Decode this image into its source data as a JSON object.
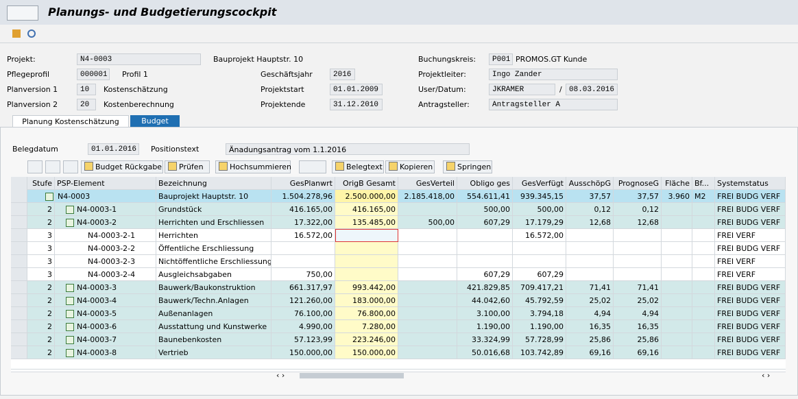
{
  "header": {
    "title": "Planungs- und Budgetierungscockpit"
  },
  "form": {
    "projekt": {
      "label": "Projekt:",
      "value": "N4-0003",
      "text": "Bauprojekt Hauptstr. 10"
    },
    "pflegeprofil": {
      "label": "Pflegeprofil",
      "value": "000001",
      "text": "Profil 1"
    },
    "planversion1": {
      "label": "Planversion 1",
      "value": "10",
      "text": "Kostenschätzung"
    },
    "planversion2": {
      "label": "Planversion 2",
      "value": "20",
      "text": "Kostenberechnung"
    },
    "geschaeftsjahr": {
      "label": "Geschäftsjahr",
      "value": "2016"
    },
    "projektstart": {
      "label": "Projektstart",
      "value": "01.01.2009"
    },
    "projektende": {
      "label": "Projektende",
      "value": "31.12.2010"
    },
    "buchungskreis": {
      "label": "Buchungskreis:",
      "value": "P001",
      "text": "PROMOS.GT Kunde"
    },
    "projektleiter": {
      "label": "Projektleiter:",
      "value": "Ingo Zander"
    },
    "user_datum": {
      "label": "User/Datum:",
      "value": "JKRAMER",
      "separator": "/",
      "date": "08.03.2016"
    },
    "antragsteller": {
      "label": "Antragsteller:",
      "value": "Antragsteller A"
    }
  },
  "tabs": [
    "Planung Kostenschätzung",
    "Budget"
  ],
  "beleg": {
    "datum_label": "Belegdatum",
    "datum": "01.01.2016",
    "text_label": "Positionstext",
    "text": "Änadungsantrag vom 1.1.2016"
  },
  "toolbar": [
    "Budget Rückgabe",
    "Prüfen",
    "Hochsummieren",
    "Belegtext",
    "Kopieren",
    "Springen"
  ],
  "table": {
    "columns": [
      "Stufe",
      "PSP-Element",
      "Bezeichnung",
      "GesPlanwrt",
      "OrigB Gesamt",
      "GesVerteil",
      "Obligo ges",
      "GesVerfügt",
      "AusschöpG",
      "PrognoseG",
      "Fläche",
      "Bf...",
      "Systemstatus"
    ],
    "rows": [
      [
        "1",
        "N4-0003",
        "Bauprojekt Hauptstr. 10",
        "1.504.278,96",
        "2.500.000,00",
        "2.185.418,00",
        "554.611,41",
        "939.345,15",
        "37,57",
        "37,57",
        "3.960",
        "M2",
        "FREI BUDG VERF"
      ],
      [
        "2",
        "N4-0003-1",
        "Grundstück",
        "416.165,00",
        "416.165,00",
        null,
        "500,00",
        "500,00",
        "0,12",
        "0,12",
        null,
        null,
        "FREI BUDG VERF"
      ],
      [
        "2",
        "N4-0003-2",
        "Herrichten und Erschliessen",
        "17.322,00",
        "135.485,00",
        "500,00",
        "607,29",
        "17.179,29",
        "12,68",
        "12,68",
        null,
        null,
        "FREI BUDG VERF"
      ],
      [
        "3",
        "N4-0003-2-1",
        "Herrichten",
        "16.572,00",
        null,
        null,
        null,
        "16.572,00",
        null,
        null,
        null,
        null,
        "FREI VERF"
      ],
      [
        "3",
        "N4-0003-2-2",
        "Öffentliche Erschliessung",
        null,
        null,
        null,
        null,
        null,
        null,
        null,
        null,
        null,
        "FREI BUDG VERF"
      ],
      [
        "3",
        "N4-0003-2-3",
        "Nichtöffentliche Erschliessung",
        null,
        null,
        null,
        null,
        null,
        null,
        null,
        null,
        null,
        "FREI VERF"
      ],
      [
        "3",
        "N4-0003-2-4",
        "Ausgleichsabgaben",
        "750,00",
        null,
        null,
        "607,29",
        "607,29",
        null,
        null,
        null,
        null,
        "FREI VERF"
      ],
      [
        "2",
        "N4-0003-3",
        "Bauwerk/Baukonstruktion",
        "661.317,97",
        "993.442,00",
        null,
        "421.829,85",
        "709.417,21",
        "71,41",
        "71,41",
        null,
        null,
        "FREI BUDG VERF"
      ],
      [
        "2",
        "N4-0003-4",
        "Bauwerk/Techn.Anlagen",
        "121.260,00",
        "183.000,00",
        null,
        "44.042,60",
        "45.792,59",
        "25,02",
        "25,02",
        null,
        null,
        "FREI BUDG VERF"
      ],
      [
        "2",
        "N4-0003-5",
        "Außenanlagen",
        "76.100,00",
        "76.800,00",
        null,
        "3.100,00",
        "3.794,18",
        "4,94",
        "4,94",
        null,
        null,
        "FREI BUDG VERF"
      ],
      [
        "2",
        "N4-0003-6",
        "Ausstattung und Kunstwerke",
        "4.990,00",
        "7.280,00",
        null,
        "1.190,00",
        "1.190,00",
        "16,35",
        "16,35",
        null,
        null,
        "FREI BUDG VERF"
      ],
      [
        "2",
        "N4-0003-7",
        "Baunebenkosten",
        "57.123,99",
        "223.246,00",
        null,
        "33.324,99",
        "57.728,99",
        "25,86",
        "25,86",
        null,
        null,
        "FREI BUDG VERF"
      ],
      [
        "2",
        "N4-0003-8",
        "Vertrieb",
        "150.000,00",
        "150.000,00",
        null,
        "50.016,68",
        "103.742,89",
        "69,16",
        "69,16",
        null,
        null,
        "FREI BUDG VERF"
      ]
    ]
  }
}
